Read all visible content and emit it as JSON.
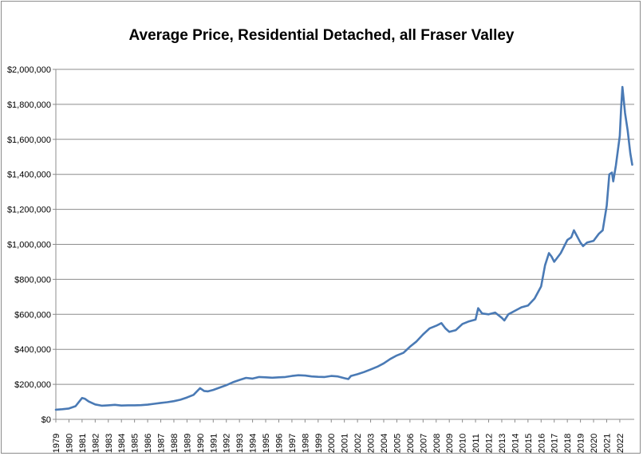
{
  "chart_data": {
    "type": "line",
    "title": "Average Price, Residential Detached, all Fraser Valley",
    "xlabel": "",
    "ylabel": "",
    "ylim": [
      0,
      2000000
    ],
    "xlim": [
      1979,
      2023.1
    ],
    "grid": "horizontal",
    "legend": "none",
    "line_color": "#4a7ab5",
    "y_ticks": [
      {
        "value": 0,
        "label": "$0"
      },
      {
        "value": 200000,
        "label": "$200,000"
      },
      {
        "value": 400000,
        "label": "$400,000"
      },
      {
        "value": 600000,
        "label": "$600,000"
      },
      {
        "value": 800000,
        "label": "$800,000"
      },
      {
        "value": 1000000,
        "label": "$1,000,000"
      },
      {
        "value": 1200000,
        "label": "$1,200,000"
      },
      {
        "value": 1400000,
        "label": "$1,400,000"
      },
      {
        "value": 1600000,
        "label": "$1,600,000"
      },
      {
        "value": 1800000,
        "label": "$1,800,000"
      },
      {
        "value": 2000000,
        "label": "$2,000,000"
      }
    ],
    "x_ticks": [
      "1979",
      "1980",
      "1981",
      "1982",
      "1983",
      "1984",
      "1985",
      "1986",
      "1987",
      "1988",
      "1989",
      "1990",
      "1991",
      "1992",
      "1993",
      "1994",
      "1995",
      "1996",
      "1997",
      "1998",
      "1999",
      "2000",
      "2001",
      "2002",
      "2003",
      "2004",
      "2005",
      "2006",
      "2007",
      "2008",
      "2009",
      "2010",
      "2011",
      "2012",
      "2013",
      "2014",
      "2015",
      "2016",
      "2017",
      "2018",
      "2019",
      "2020",
      "2021",
      "2022"
    ],
    "series": [
      {
        "x": [
          1979.0,
          1979.5,
          1980.0,
          1980.5,
          1981.0,
          1981.2,
          1981.5,
          1982.0,
          1982.5,
          1983.0,
          1983.5,
          1984.0,
          1984.5,
          1985.0,
          1985.5,
          1986.0,
          1986.5,
          1987.0,
          1987.5,
          1988.0,
          1988.5,
          1989.0,
          1989.5,
          1990.0,
          1990.3,
          1990.6,
          1991.0,
          1991.5,
          1992.0,
          1992.5,
          1993.0,
          1993.5,
          1994.0,
          1994.5,
          1995.0,
          1995.5,
          1996.0,
          1996.5,
          1997.0,
          1997.5,
          1998.0,
          1998.5,
          1999.0,
          1999.5,
          2000.0,
          2000.5,
          2001.0,
          2001.3,
          2001.5,
          2002.0,
          2002.5,
          2003.0,
          2003.5,
          2004.0,
          2004.5,
          2005.0,
          2005.5,
          2006.0,
          2006.5,
          2007.0,
          2007.5,
          2008.0,
          2008.4,
          2008.7,
          2009.0,
          2009.5,
          2010.0,
          2010.5,
          2011.0,
          2011.2,
          2011.5,
          2012.0,
          2012.5,
          2013.0,
          2013.2,
          2013.5,
          2014.0,
          2014.5,
          2015.0,
          2015.5,
          2016.0,
          2016.3,
          2016.6,
          2016.8,
          2017.0,
          2017.5,
          2018.0,
          2018.3,
          2018.5,
          2019.0,
          2019.2,
          2019.5,
          2020.0,
          2020.4,
          2020.7,
          2021.0,
          2021.2,
          2021.4,
          2021.5,
          2021.7,
          2022.0,
          2022.1,
          2022.2,
          2022.4,
          2022.6,
          2022.8,
          2022.95
        ],
        "y": [
          55000,
          58000,
          62000,
          75000,
          122000,
          118000,
          102000,
          85000,
          78000,
          80000,
          83000,
          79000,
          80000,
          80000,
          81000,
          84000,
          89000,
          94000,
          98000,
          104000,
          112000,
          125000,
          140000,
          178000,
          162000,
          160000,
          168000,
          182000,
          195000,
          212000,
          225000,
          237000,
          233000,
          242000,
          240000,
          238000,
          240000,
          242000,
          248000,
          252000,
          250000,
          245000,
          243000,
          242000,
          248000,
          245000,
          235000,
          230000,
          248000,
          258000,
          270000,
          285000,
          300000,
          320000,
          345000,
          365000,
          380000,
          415000,
          445000,
          485000,
          520000,
          535000,
          550000,
          520000,
          500000,
          510000,
          545000,
          560000,
          570000,
          635000,
          605000,
          600000,
          610000,
          580000,
          565000,
          600000,
          620000,
          640000,
          650000,
          690000,
          760000,
          880000,
          950000,
          930000,
          900000,
          950000,
          1025000,
          1040000,
          1080000,
          1010000,
          990000,
          1010000,
          1020000,
          1060000,
          1080000,
          1220000,
          1400000,
          1410000,
          1360000,
          1450000,
          1620000,
          1780000,
          1900000,
          1750000,
          1650000,
          1520000,
          1455000
        ]
      }
    ]
  }
}
